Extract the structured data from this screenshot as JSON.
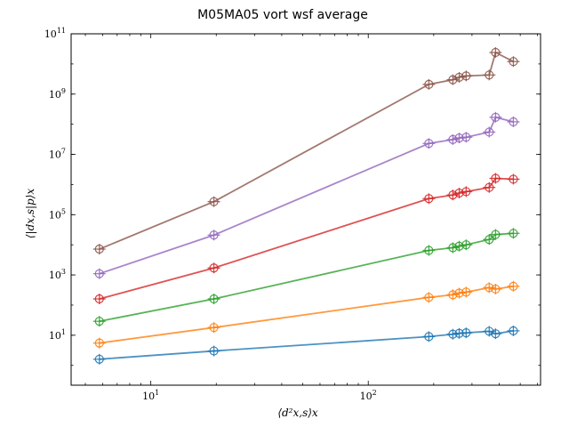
{
  "chart_data": {
    "type": "line",
    "title": "M05MA05 vort wsf average",
    "xlabel": "⟨d²x,s⟩x",
    "ylabel": "⟨|dx,s|p⟩x",
    "xscale": "log",
    "yscale": "log",
    "xlim": [
      4.3,
      620
    ],
    "ylim": [
      0.22,
      100000000000
    ],
    "x_ticks": [
      {
        "value": 10,
        "label": "10",
        "sup": "1"
      },
      {
        "value": 100,
        "label": "10",
        "sup": "2"
      }
    ],
    "y_ticks": [
      {
        "value": 10,
        "label": "10",
        "sup": "1"
      },
      {
        "value": 1000,
        "label": "10",
        "sup": "3"
      },
      {
        "value": 100000,
        "label": "10",
        "sup": "5"
      },
      {
        "value": 10000000,
        "label": "10",
        "sup": "7"
      },
      {
        "value": 1000000000,
        "label": "10",
        "sup": "9"
      },
      {
        "value": 100000000000,
        "label": "10",
        "sup": "11"
      }
    ],
    "grid": false,
    "x": [
      5.8,
      19.5,
      190,
      245,
      262,
      282,
      360,
      385,
      465
    ],
    "series": [
      {
        "color": "#1f77b4",
        "values": [
          1.6,
          3.0,
          9.0,
          10.8,
          11.5,
          12.0,
          13.5,
          11.2,
          14.0
        ]
      },
      {
        "color": "#ff7f0e",
        "values": [
          5.5,
          18.0,
          180,
          220,
          250,
          270,
          380,
          340,
          420
        ]
      },
      {
        "color": "#2ca02c",
        "values": [
          29,
          160,
          6500,
          8000,
          9000,
          10000,
          15000,
          22000,
          24000
        ]
      },
      {
        "color": "#d62728",
        "values": [
          160,
          1700,
          340000,
          450000,
          520000,
          580000,
          800000,
          1600000,
          1500000
        ]
      },
      {
        "color": "#9467bd",
        "values": [
          1100,
          21000,
          23000000,
          31000000,
          35000000,
          37000000,
          55000000,
          170000000,
          120000000
        ]
      },
      {
        "color": "#8c564b",
        "values": [
          7200,
          270000,
          2100000000,
          3000000000,
          3600000000,
          4000000000,
          4300000000,
          24000000000,
          12000000000
        ]
      }
    ]
  }
}
